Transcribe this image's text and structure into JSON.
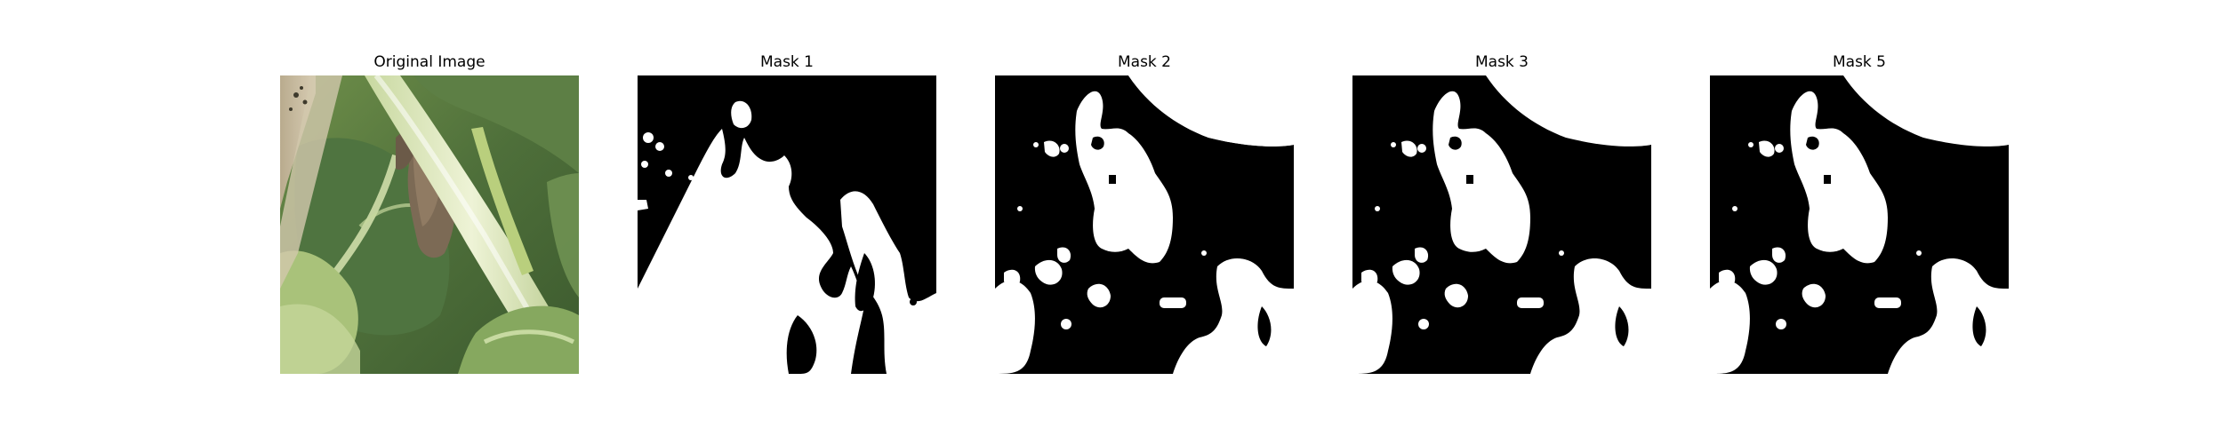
{
  "figure": {
    "panels": [
      {
        "title": "Original Image"
      },
      {
        "title": "Mask 1"
      },
      {
        "title": "Mask 2"
      },
      {
        "title": "Mask 3"
      },
      {
        "title": "Mask 5"
      }
    ]
  }
}
